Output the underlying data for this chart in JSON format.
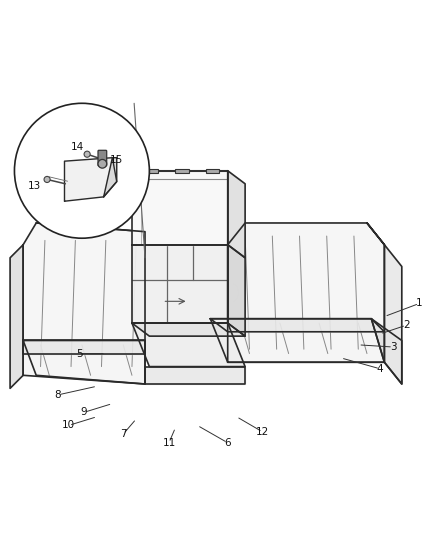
{
  "bg_color": "#ffffff",
  "line_color": "#2a2a2a",
  "line_width": 1.2,
  "callout_positions": {
    "1": [
      0.96,
      0.415,
      0.88,
      0.385
    ],
    "2": [
      0.93,
      0.365,
      0.87,
      0.345
    ],
    "3": [
      0.9,
      0.315,
      0.82,
      0.32
    ],
    "4": [
      0.87,
      0.265,
      0.78,
      0.29
    ],
    "5": [
      0.18,
      0.3,
      0.24,
      0.3
    ],
    "6": [
      0.52,
      0.095,
      0.45,
      0.135
    ],
    "7": [
      0.28,
      0.115,
      0.31,
      0.15
    ],
    "8": [
      0.13,
      0.205,
      0.22,
      0.225
    ],
    "9": [
      0.19,
      0.165,
      0.255,
      0.185
    ],
    "10": [
      0.155,
      0.135,
      0.22,
      0.155
    ],
    "11": [
      0.385,
      0.095,
      0.4,
      0.13
    ],
    "12": [
      0.6,
      0.12,
      0.54,
      0.155
    ],
    "13": [
      0.075,
      0.685,
      0.11,
      0.7
    ],
    "14": [
      0.175,
      0.775,
      0.185,
      0.755
    ],
    "15": [
      0.265,
      0.745,
      0.245,
      0.735
    ]
  }
}
